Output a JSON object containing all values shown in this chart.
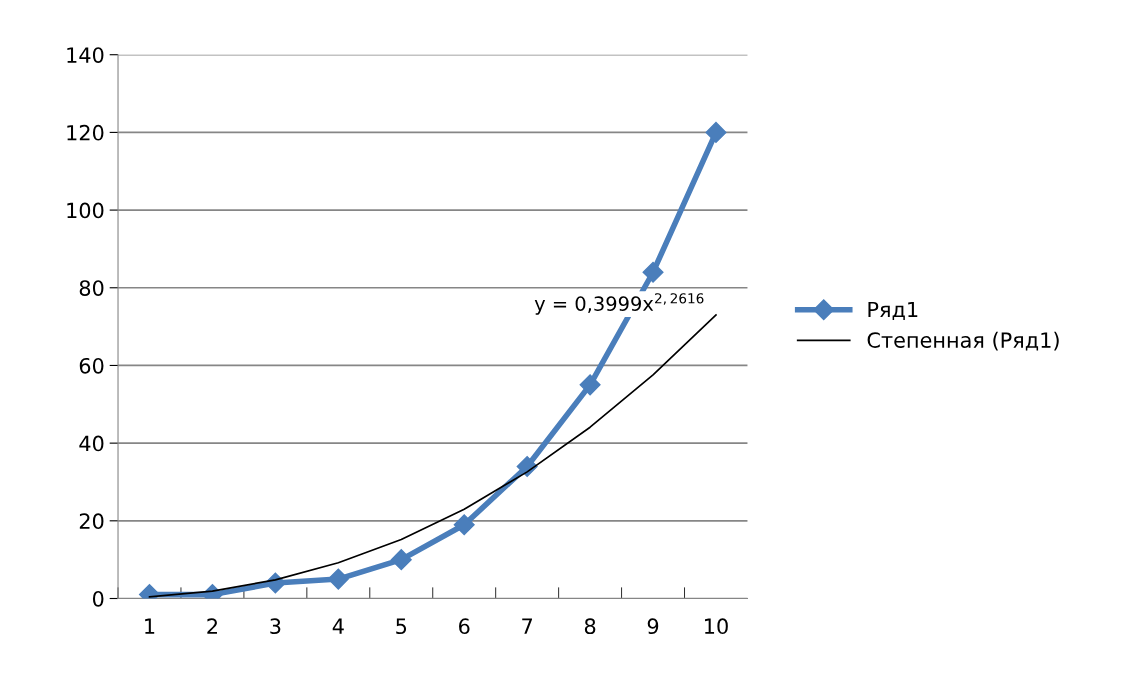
{
  "chart_data": {
    "type": "line",
    "categories": [
      "1",
      "2",
      "3",
      "4",
      "5",
      "6",
      "7",
      "8",
      "9",
      "10"
    ],
    "series": [
      {
        "name": "Ряд1",
        "color": "#4a7ebb",
        "values": [
          1,
          1,
          4,
          5,
          10,
          19,
          34,
          55,
          84,
          120
        ],
        "marker": "diamond",
        "line_style": "solid"
      },
      {
        "name": "Степенная (Ряд1)",
        "color": "#000000",
        "values": [
          0.4,
          1.9,
          4.8,
          9.2,
          15.2,
          23.0,
          32.6,
          44.1,
          57.6,
          73.0
        ],
        "marker": "none",
        "line_style": "solid"
      }
    ],
    "ylim": [
      0,
      140
    ],
    "yticks": [
      0,
      20,
      40,
      60,
      80,
      100,
      120,
      140
    ],
    "grid": "y",
    "legend": "right",
    "annotations": [
      {
        "text": "y = 0,3999x$^{2,2616}$",
        "x": "10",
        "y": 73.0
      }
    ]
  }
}
